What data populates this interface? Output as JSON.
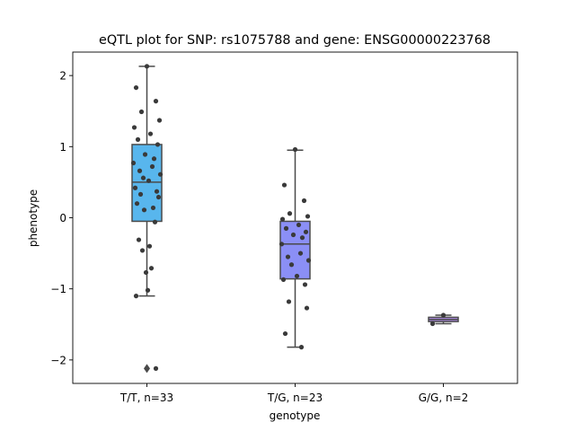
{
  "chart_data": {
    "type": "box",
    "title": "eQTL plot for SNP: rs1075788 and gene: ENSG00000223768",
    "xlabel": "genotype",
    "ylabel": "phenotype",
    "ylim": [
      -2.33,
      2.33
    ],
    "yticks": [
      {
        "value": 2,
        "label": "2"
      },
      {
        "value": 1,
        "label": "1"
      },
      {
        "value": 0,
        "label": "0"
      },
      {
        "value": -1,
        "label": "−1"
      },
      {
        "value": -2,
        "label": "−2"
      }
    ],
    "grid": false,
    "legend": "none",
    "categories": [
      {
        "label": "T/T, n=33",
        "color": "#58b6ed",
        "q1": -0.05,
        "median": 0.5,
        "q3": 1.03,
        "whisker_low": -1.1,
        "whisker_high": 2.13,
        "outliers": [
          -2.12
        ],
        "points": [
          2.13,
          1.83,
          1.64,
          1.49,
          1.37,
          1.27,
          1.18,
          1.1,
          1.03,
          0.89,
          0.83,
          0.77,
          0.72,
          0.66,
          0.61,
          0.56,
          0.52,
          0.42,
          0.37,
          0.33,
          0.29,
          0.2,
          0.14,
          0.11,
          -0.06,
          -0.31,
          -0.4,
          -0.46,
          -0.71,
          -0.77,
          -1.02,
          -1.1,
          -2.12
        ]
      },
      {
        "label": "T/G, n=23",
        "color": "#8b8ff6",
        "q1": -0.86,
        "median": -0.37,
        "q3": -0.05,
        "whisker_low": -1.82,
        "whisker_high": 0.95,
        "outliers": [],
        "points": [
          0.96,
          0.46,
          0.24,
          0.06,
          0.02,
          -0.02,
          -0.1,
          -0.15,
          -0.2,
          -0.24,
          -0.28,
          -0.37,
          -0.5,
          -0.55,
          -0.6,
          -0.66,
          -0.82,
          -0.87,
          -0.94,
          -1.18,
          -1.27,
          -1.63,
          -1.82
        ]
      },
      {
        "label": "G/G, n=2",
        "color": "#b48ef0",
        "q1": -1.46,
        "median": -1.43,
        "q3": -1.4,
        "whisker_low": -1.49,
        "whisker_high": -1.37,
        "outliers": [],
        "points": [
          -1.37,
          -1.49
        ]
      }
    ]
  }
}
